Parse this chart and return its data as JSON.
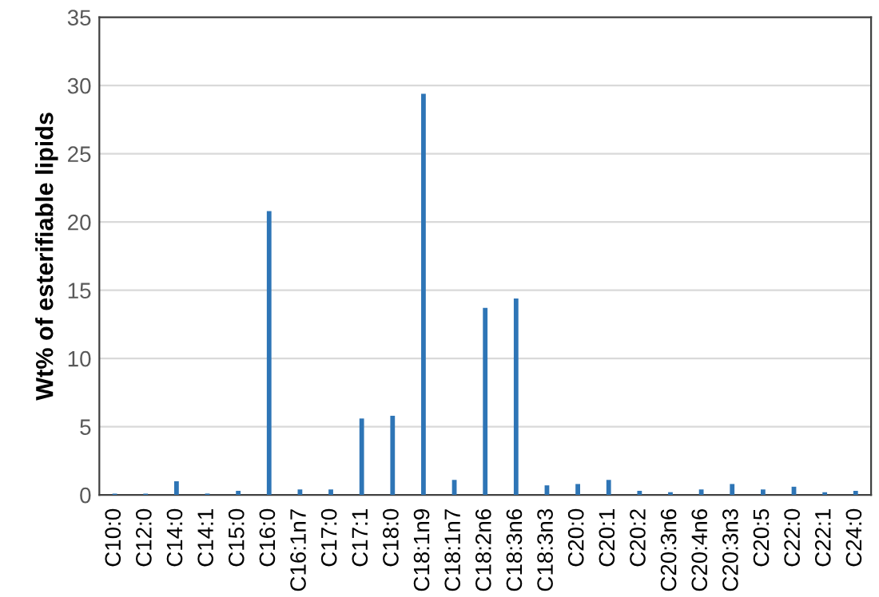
{
  "chart_data": {
    "type": "bar",
    "ylabel": "Wt% of esterifiable lipids",
    "categories": [
      "C10:0",
      "C12:0",
      "C14:0",
      "C14:1",
      "C15:0",
      "C16:0",
      "C16:1n7",
      "C17:0",
      "C17:1",
      "C18:0",
      "C18:1n9",
      "C18:1n7",
      "C18:2n6",
      "C18:3n6",
      "C18:3n3",
      "C20:0",
      "C20:1",
      "C20:2",
      "C20:3n6",
      "C20:4n6",
      "C20:3n3",
      "C20:5",
      "C22:0",
      "C22:1",
      "C24:0"
    ],
    "values": [
      0.1,
      0.1,
      1.0,
      0.1,
      0.3,
      20.8,
      0.4,
      0.4,
      5.6,
      5.8,
      29.4,
      1.1,
      13.7,
      14.4,
      0.7,
      0.8,
      1.1,
      0.3,
      0.2,
      0.4,
      0.8,
      0.4,
      0.6,
      0.2,
      0.3
    ],
    "color": "#2e75b6",
    "ylim": [
      0,
      35
    ],
    "yticks": [
      0,
      5,
      10,
      15,
      20,
      25,
      30,
      35
    ],
    "grid": "y"
  }
}
